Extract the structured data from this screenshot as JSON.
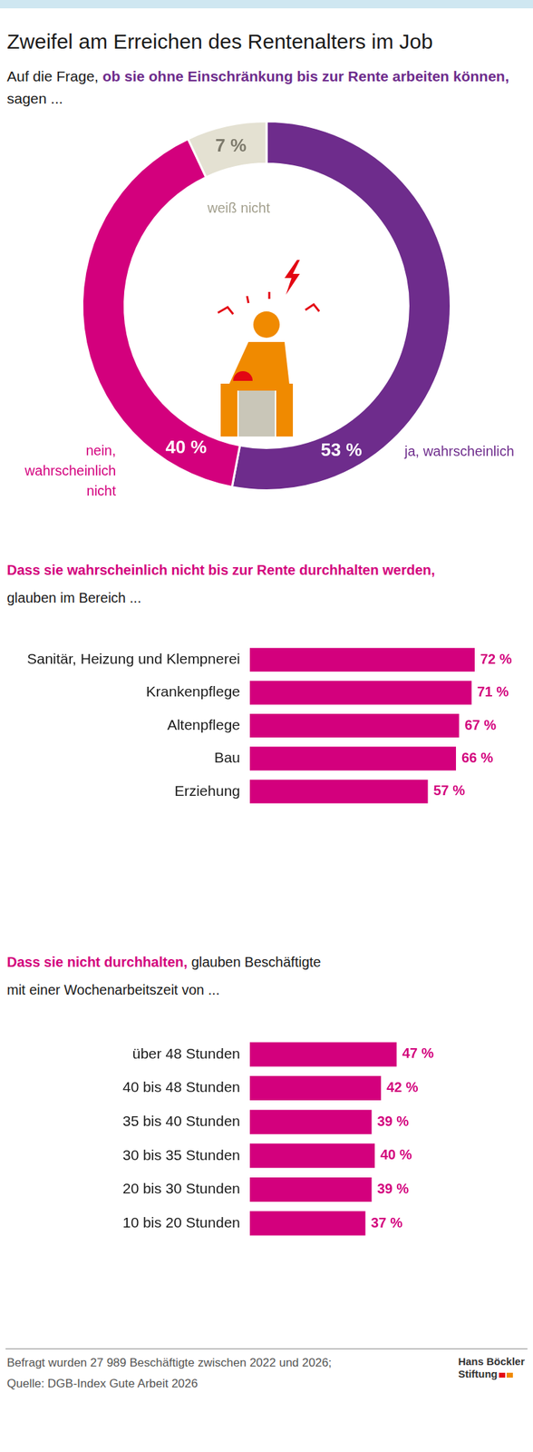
{
  "title": "Zweifel am Erreichen des Rentenalters im Job",
  "chart_data": [
    {
      "type": "doughnut",
      "subtitle": [
        [
          {
            "plain": "Auf die Frage, "
          },
          {
            "bold": "ob sie ohne Einschränkung bis zur Rente arbeiten können,"
          }
        ],
        [
          {
            "plain": "sagen ..."
          }
        ]
      ],
      "categories": [
        "ja, wahrscheinlich",
        "nein, wahrscheinlich nicht",
        "weiß nicht"
      ],
      "values": [
        53,
        40,
        7
      ],
      "value_labels": [
        "53 %",
        "40 %",
        "7 %"
      ],
      "colors": [
        "#6e2c8c",
        "#d3007d",
        "#e4e1d2"
      ],
      "data_labels": true
    },
    {
      "type": "bar",
      "orientation": "horizontal",
      "title": [
        [
          {
            "bold": "Dass sie wahrscheinlich nicht bis zur Rente durchhalten werden,"
          }
        ],
        [
          {
            "plain": "glauben im Bereich ..."
          }
        ]
      ],
      "categories": [
        "Sanitär, Heizung und Klempnerei",
        "Krankenpflege",
        "Altenpflege",
        "Bau",
        "Erziehung"
      ],
      "values": [
        72,
        71,
        67,
        66,
        57
      ],
      "value_labels": [
        "72 %",
        "71 %",
        "67 %",
        "66 %",
        "57 %"
      ],
      "color": "#d3007d",
      "xlim": [
        0,
        80
      ],
      "grid": false,
      "tick_labels": "y",
      "data_labels": true
    },
    {
      "type": "bar",
      "orientation": "horizontal",
      "title": [
        [
          {
            "bold": "Dass sie nicht durchhalten,"
          },
          {
            "plain": " glauben Beschäftigte"
          }
        ],
        [
          {
            "plain": "mit einer Wochenarbeitszeit von ..."
          }
        ]
      ],
      "categories": [
        "über 48 Stunden",
        "40 bis 48 Stunden",
        "35 bis 40 Stunden",
        "30 bis 35 Stunden",
        "20 bis 30 Stunden",
        "10 bis 20 Stunden"
      ],
      "values": [
        47,
        42,
        39,
        40,
        39,
        37
      ],
      "value_labels": [
        "47 %",
        "42 %",
        "39 %",
        "40 %",
        "39 %",
        "37 %"
      ],
      "color": "#d3007d",
      "xlim": [
        0,
        80
      ],
      "grid": false,
      "tick_labels": "y",
      "data_labels": true
    }
  ],
  "footer": [
    "Befragt wurden 27 989 Beschäftigte zwischen 2022 und 2026;",
    "Quelle: DGB-Index Gute Arbeit 2026"
  ],
  "logo": [
    "Hans Böckler",
    "Stiftung"
  ]
}
